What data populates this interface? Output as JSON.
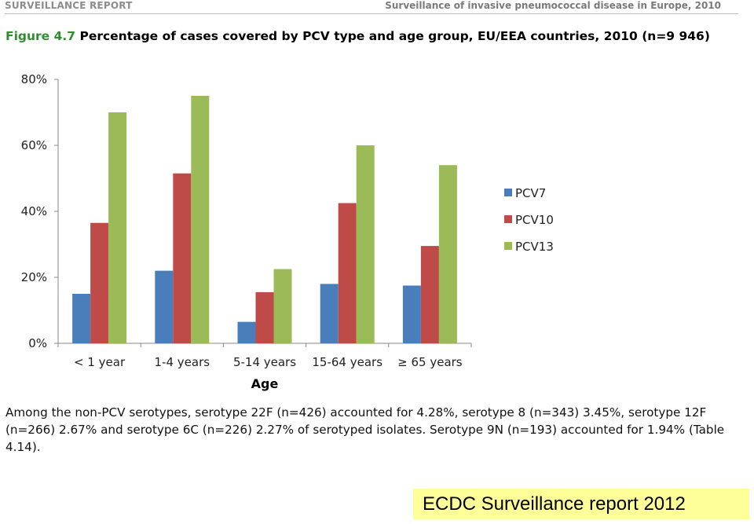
{
  "header": {
    "left": "SURVEILLANCE REPORT",
    "right": "Surveillance of invasive pneumococcal disease in Europe, 2010"
  },
  "figure": {
    "number": "Figure 4.7",
    "title": "Percentage of cases covered by PCV type and age group, EU/EEA countries, 2010 (n=9 946)"
  },
  "chart_data": {
    "type": "bar",
    "title": "",
    "xlabel": "Age",
    "ylabel": "",
    "categories": [
      "< 1 year",
      "1-4 years",
      "5-14 years",
      "15-64 years",
      "≥ 65 years"
    ],
    "series": [
      {
        "name": "PCV7",
        "color": "#4a7ebb",
        "values": [
          15,
          22,
          6.5,
          18,
          17.5
        ]
      },
      {
        "name": "PCV10",
        "color": "#be4b48",
        "values": [
          36.5,
          51.5,
          15.5,
          42.5,
          29.5
        ]
      },
      {
        "name": "PCV13",
        "color": "#9bbb59",
        "values": [
          70,
          75,
          22.5,
          60,
          54
        ]
      }
    ],
    "ylim": [
      0,
      80
    ],
    "yticks": [
      0,
      20,
      40,
      60,
      80
    ],
    "ytick_labels": [
      "0%",
      "20%",
      "40%",
      "60%",
      "80%"
    ],
    "grid": false,
    "legend_position": "right"
  },
  "paragraph": "Among the non-PCV serotypes, serotype 22F (n=426) accounted for 4.28%, serotype 8 (n=343) 3.45%, serotype 12F (n=266) 2.67% and serotype 6C (n=226) 2.27% of serotyped isolates. Serotype 9N (n=193) accounted for 1.94% (Table 4.14).",
  "caption": "ECDC Surveillance report 2012"
}
